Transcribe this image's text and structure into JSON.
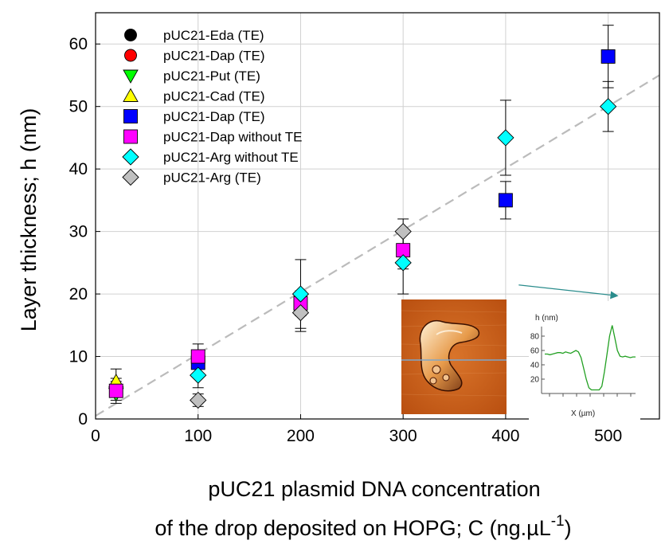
{
  "chart_data": {
    "type": "scatter",
    "xlabel_line1": "pUC21 plasmid DNA concentration",
    "xlabel_line2": "of the drop deposited on HOPG; C (ng.µL",
    "xlabel_sup": "-1",
    "xlabel_end": ")",
    "ylabel": "Layer thickness; h (nm)",
    "xlim": [
      0,
      550
    ],
    "ylim": [
      0,
      65
    ],
    "xticks": [
      0,
      100,
      200,
      300,
      400,
      500
    ],
    "yticks": [
      0,
      10,
      20,
      30,
      40,
      50,
      60
    ],
    "grid": true,
    "legend_position": "top-left",
    "trendline": {
      "style": "dashed",
      "color": "#bbbbbb",
      "x": [
        0,
        550
      ],
      "y": [
        0.5,
        55
      ]
    },
    "series": [
      {
        "name": "pUC21-Eda (TE)",
        "marker": "circle",
        "color": "#000000",
        "points": [
          {
            "x": 20,
            "y": 4.5,
            "err": 1.5
          }
        ]
      },
      {
        "name": "pUC21-Dap (TE)",
        "marker": "circle",
        "color": "#ff0000",
        "points": [
          {
            "x": 20,
            "y": 5,
            "err": 1.5
          }
        ]
      },
      {
        "name": "pUC21-Put (TE)",
        "marker": "triangle-down",
        "color": "#00ff00",
        "points": [
          {
            "x": 20,
            "y": 4,
            "err": 1.5
          }
        ]
      },
      {
        "name": "pUC21-Cad (TE)",
        "marker": "triangle-up",
        "color": "#ffff00",
        "points": [
          {
            "x": 20,
            "y": 6,
            "err": 2
          }
        ]
      },
      {
        "name": "pUC21-Dap (TE)",
        "marker": "square",
        "color": "#0000ff",
        "points": [
          {
            "x": 100,
            "y": 9,
            "err": 2
          },
          {
            "x": 400,
            "y": 35,
            "err": 3
          },
          {
            "x": 500,
            "y": 58,
            "err": 5
          }
        ]
      },
      {
        "name": "pUC21-Dap without TE",
        "marker": "square",
        "color": "#ff00ff",
        "points": [
          {
            "x": 20,
            "y": 4.5,
            "err": 1
          },
          {
            "x": 100,
            "y": 10,
            "err": 2
          },
          {
            "x": 200,
            "y": 18.5,
            "err": 2
          },
          {
            "x": 300,
            "y": 27,
            "err": 3
          }
        ]
      },
      {
        "name": "pUC21-Arg without TE",
        "marker": "diamond",
        "color": "#00ffff",
        "points": [
          {
            "x": 100,
            "y": 7,
            "err": 2
          },
          {
            "x": 200,
            "y": 20,
            "err": 5.5
          },
          {
            "x": 300,
            "y": 25,
            "err": 5
          },
          {
            "x": 400,
            "y": 45,
            "err": 6
          },
          {
            "x": 500,
            "y": 50,
            "err": 4
          }
        ]
      },
      {
        "name": "pUC21-Arg (TE)",
        "marker": "diamond",
        "color": "#c0c0c0",
        "points": [
          {
            "x": 100,
            "y": 3,
            "err": 1
          },
          {
            "x": 200,
            "y": 17,
            "err": 3
          },
          {
            "x": 300,
            "y": 30,
            "err": 2
          }
        ]
      }
    ],
    "annotation": {
      "type": "arrow",
      "color": "#2a8c8c",
      "from": {
        "x": 0.78,
        "y": 0.52
      },
      "to": {
        "x": 0.93,
        "y": 0.54
      }
    },
    "inset": {
      "image_desc": "AFM height image",
      "profile": {
        "ylabel": "h (nm)",
        "xlabel": "X (µm)",
        "yticks": [
          20,
          40,
          60,
          80
        ],
        "ylim": [
          0,
          100
        ],
        "color": "#22a022",
        "values": [
          55,
          55,
          54,
          55,
          56,
          57,
          57,
          56,
          58,
          57,
          56,
          58,
          60,
          58,
          50,
          35,
          20,
          8,
          5,
          5,
          5,
          5,
          10,
          30,
          55,
          80,
          95,
          78,
          60,
          52,
          51,
          52,
          51,
          50,
          51,
          51
        ]
      }
    }
  }
}
